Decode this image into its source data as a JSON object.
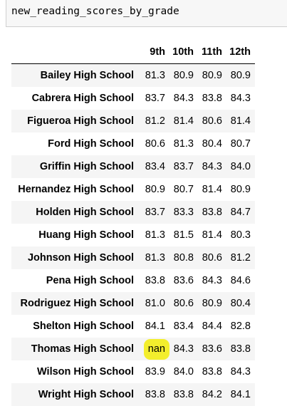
{
  "code_cell": {
    "text": "new_reading_scores_by_grade"
  },
  "table": {
    "columns": [
      "9th",
      "10th",
      "11th",
      "12th"
    ],
    "rows": [
      {
        "school": "Bailey High School",
        "values": [
          "81.3",
          "80.9",
          "80.9",
          "80.9"
        ]
      },
      {
        "school": "Cabrera High School",
        "values": [
          "83.7",
          "84.3",
          "83.8",
          "84.3"
        ]
      },
      {
        "school": "Figueroa High School",
        "values": [
          "81.2",
          "81.4",
          "80.6",
          "81.4"
        ]
      },
      {
        "school": "Ford High School",
        "values": [
          "80.6",
          "81.3",
          "80.4",
          "80.7"
        ]
      },
      {
        "school": "Griffin High School",
        "values": [
          "83.4",
          "83.7",
          "84.3",
          "84.0"
        ]
      },
      {
        "school": "Hernandez High School",
        "values": [
          "80.9",
          "80.7",
          "81.4",
          "80.9"
        ]
      },
      {
        "school": "Holden High School",
        "values": [
          "83.7",
          "83.3",
          "83.8",
          "84.7"
        ]
      },
      {
        "school": "Huang High School",
        "values": [
          "81.3",
          "81.5",
          "81.4",
          "80.3"
        ]
      },
      {
        "school": "Johnson High School",
        "values": [
          "81.3",
          "80.8",
          "80.6",
          "81.2"
        ]
      },
      {
        "school": "Pena High School",
        "values": [
          "83.8",
          "83.6",
          "84.3",
          "84.6"
        ]
      },
      {
        "school": "Rodriguez High School",
        "values": [
          "81.0",
          "80.6",
          "80.9",
          "80.4"
        ]
      },
      {
        "school": "Shelton High School",
        "values": [
          "84.1",
          "83.4",
          "84.4",
          "82.8"
        ]
      },
      {
        "school": "Thomas High School",
        "values": [
          "nan",
          "84.3",
          "83.6",
          "83.8"
        ]
      },
      {
        "school": "Wilson High School",
        "values": [
          "83.9",
          "84.0",
          "83.8",
          "84.3"
        ]
      },
      {
        "school": "Wright High School",
        "values": [
          "83.8",
          "83.8",
          "84.2",
          "84.1"
        ]
      }
    ],
    "highlight": {
      "row": 12,
      "col": 0,
      "color": "#f3ee2d"
    }
  }
}
